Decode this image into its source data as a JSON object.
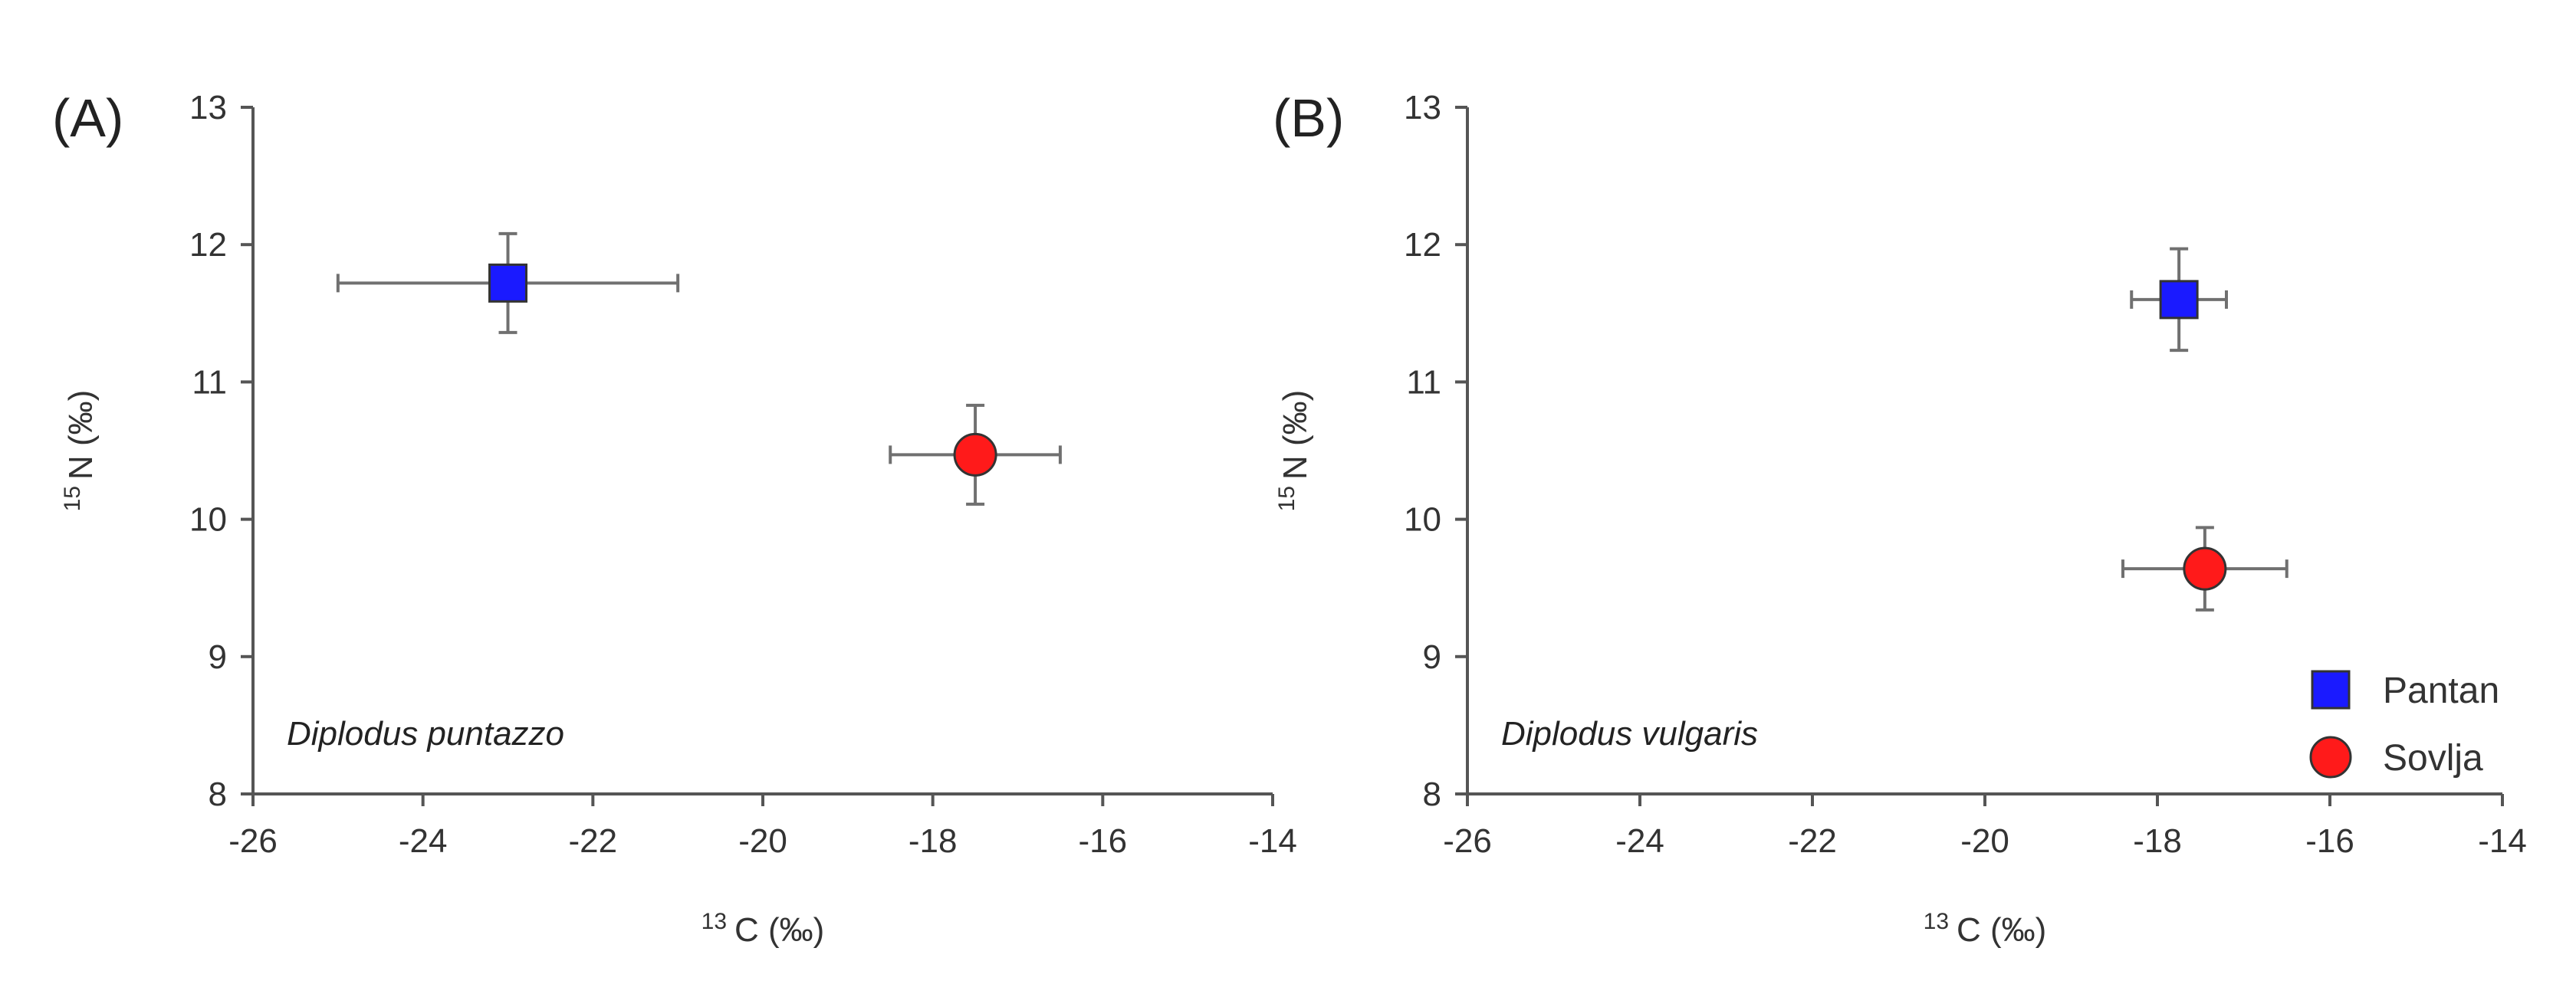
{
  "chart_data": [
    {
      "type": "scatter",
      "panel_label": "(A)",
      "annotation": "Diplodus puntazzo",
      "xlabel_sup": "13",
      "xlabel": "C (‰)",
      "ylabel_sup": "15",
      "ylabel": "N (‰)",
      "xlim": [
        -26,
        -14
      ],
      "ylim": [
        8,
        13
      ],
      "xticks": [
        -26,
        -24,
        -22,
        -20,
        -18,
        -16,
        -14
      ],
      "yticks": [
        8,
        9,
        10,
        11,
        12,
        13
      ],
      "grid": false,
      "points": [
        {
          "series": "Pantan",
          "x": -23.0,
          "y": 11.72,
          "xerr": 2.0,
          "yerr": 0.36,
          "marker": "square",
          "color": "#1a1aff"
        },
        {
          "series": "Sovlja",
          "x": -17.5,
          "y": 10.47,
          "xerr": 1.0,
          "yerr": 0.36,
          "marker": "circle",
          "color": "#ff1a1a"
        }
      ]
    },
    {
      "type": "scatter",
      "panel_label": "(B)",
      "annotation": "Diplodus vulgaris",
      "xlabel_sup": "13",
      "xlabel": "C (‰)",
      "ylabel_sup": "15",
      "ylabel": "N (‰)",
      "xlim": [
        -26,
        -14
      ],
      "ylim": [
        8,
        13
      ],
      "xticks": [
        -26,
        -24,
        -22,
        -20,
        -18,
        -16,
        -14
      ],
      "yticks": [
        8,
        9,
        10,
        11,
        12,
        13
      ],
      "grid": false,
      "legend": {
        "position": "bottom-right",
        "entries": [
          {
            "label": "Pantan",
            "marker": "square",
            "color": "#1a1aff"
          },
          {
            "label": "Sovlja",
            "marker": "circle",
            "color": "#ff1a1a"
          }
        ]
      },
      "points": [
        {
          "series": "Pantan",
          "x": -17.75,
          "y": 11.6,
          "xerr": 0.55,
          "yerr": 0.37,
          "marker": "square",
          "color": "#1a1aff"
        },
        {
          "series": "Sovlja",
          "x": -17.45,
          "y": 9.64,
          "xerr": 0.95,
          "yerr": 0.3,
          "marker": "circle",
          "color": "#ff1a1a"
        }
      ]
    }
  ]
}
